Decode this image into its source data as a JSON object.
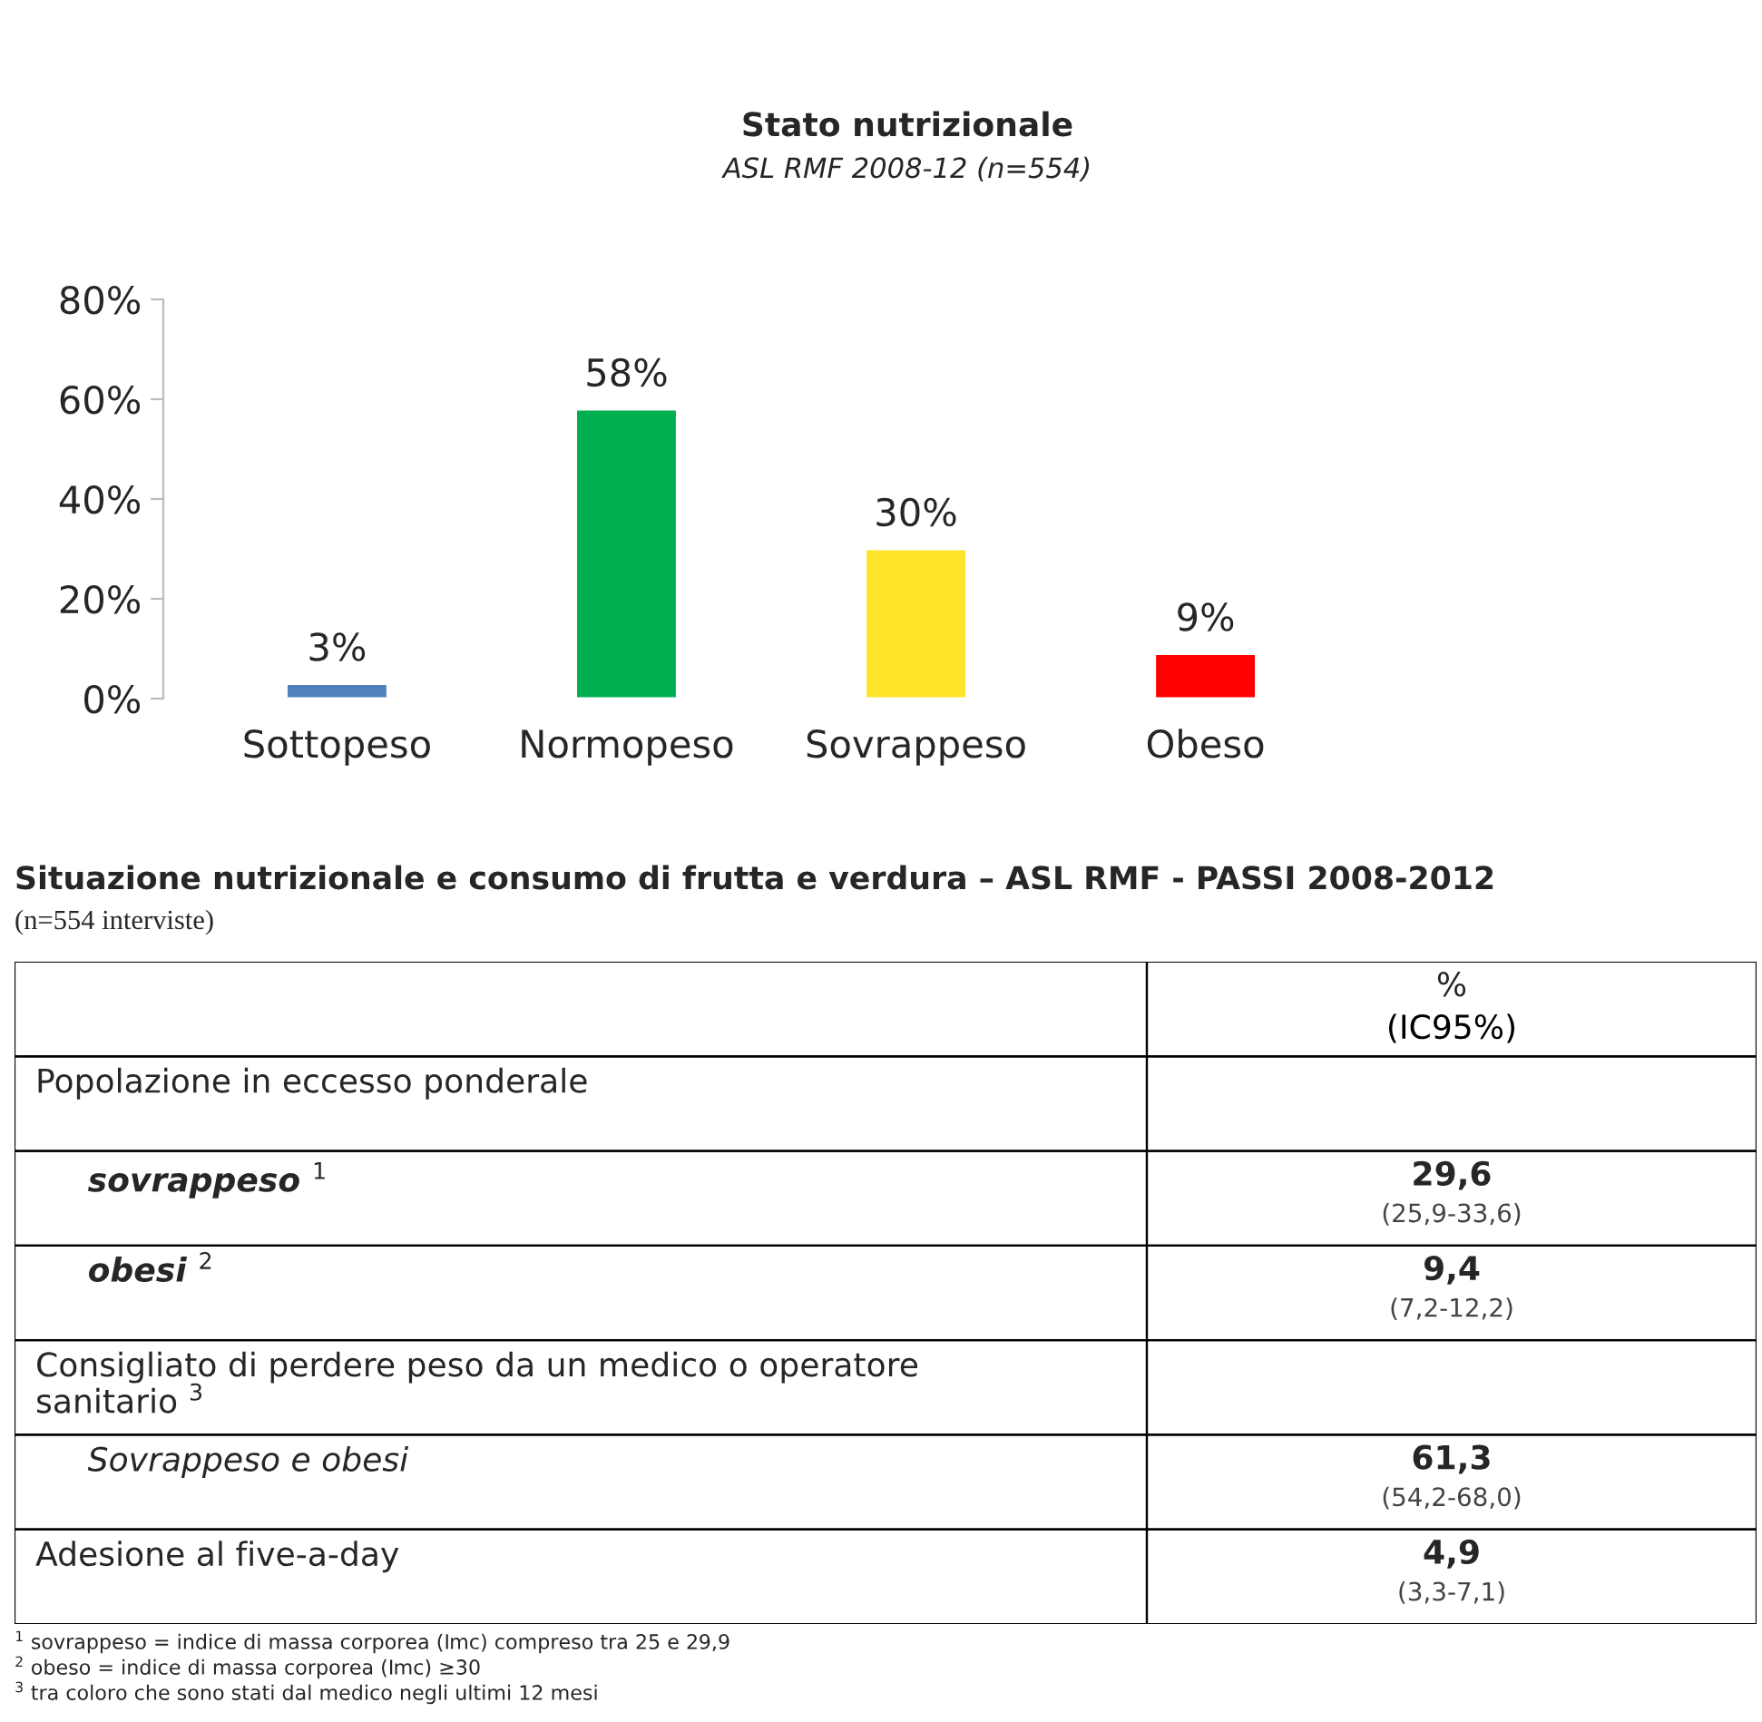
{
  "chart_data": [
    {
      "type": "bar",
      "title": "Stato nutrizionale",
      "subtitle": "ASL RMF 2008-12 (n=554)",
      "categories": [
        "Sottopeso",
        "Normopeso",
        "Sovrappeso",
        "Obeso"
      ],
      "values": [
        3,
        58,
        30,
        9
      ],
      "colors": [
        "#4f81bd",
        "#00b050",
        "#ffe42a",
        "#ff0000"
      ],
      "value_labels": [
        "3%",
        "58%",
        "30%",
        "9%"
      ],
      "ylim": [
        0,
        80
      ],
      "yticks": [
        {
          "value": 0,
          "label": "0%"
        },
        {
          "value": 20,
          "label": "20%"
        },
        {
          "value": 40,
          "label": "40%"
        },
        {
          "value": 60,
          "label": "60%"
        },
        {
          "value": 80,
          "label": "80%"
        }
      ]
    },
    {
      "type": "other",
      "title": "Situazione nutrizionale e consumo di frutta e verdura – ASL RMF - PASSI 2008-2012",
      "subtitle": "(n=554 interviste)",
      "categories": [
        null,
        "Popolazione in eccesso ponderale",
        "sovrappeso $^{1}$",
        "obesi $^{2}$",
        "Consigliato di perdere peso da un medico o operatore\nsanitario $^{3}$",
        "Sovrappeso e obesi",
        "Adesione al five-a-day"
      ],
      "value_labels": [
        "%\n(IC95%)",
        null,
        "29,6\n(25,9-33,6)",
        "9,4\n(7,2-12,2)",
        null,
        "61,3\n(54,2-68,0)",
        "4,9\n(3,3-7,1)"
      ],
      "annotations": [
        "$^{1}$ sovrappeso = indice di massa corporea (Imc) compreso tra 25 e 29,9",
        "$^{2}$ obeso = indice di massa corporea (Imc) ≥30",
        "$^{3}$ tra coloro che sono stati dal medico negli ultimi 12 mesi"
      ]
    }
  ]
}
